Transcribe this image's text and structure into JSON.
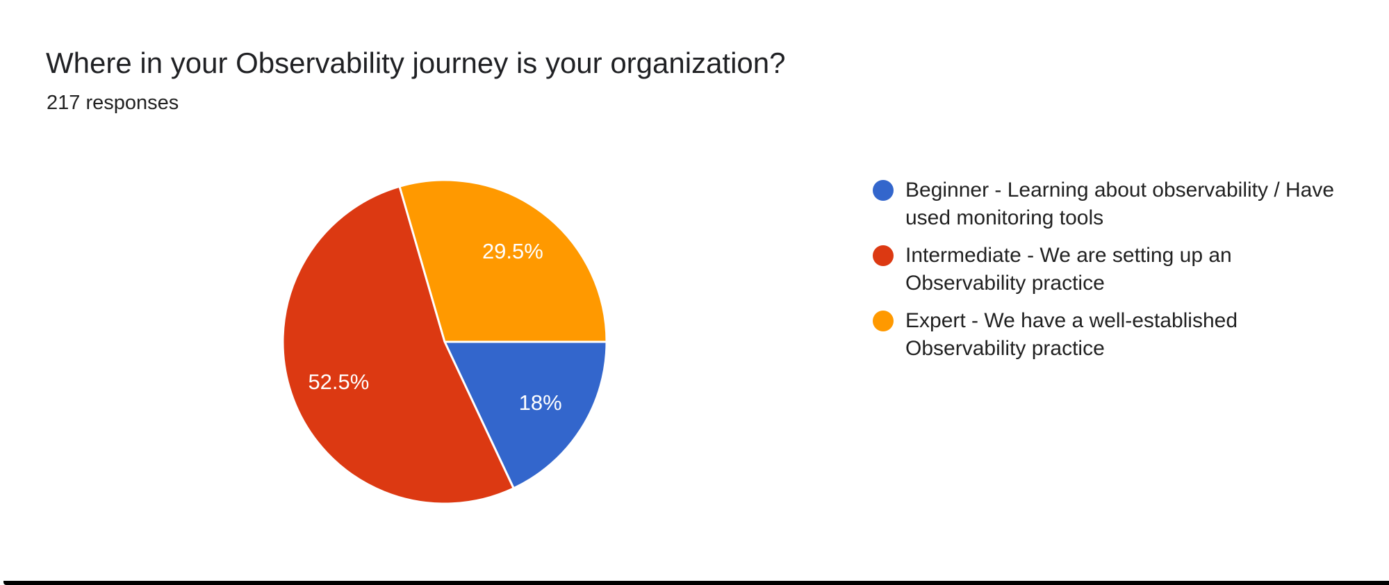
{
  "header": {
    "title": "Where in your Observability journey is your organization?",
    "responses": "217 responses"
  },
  "chart_data": {
    "type": "pie",
    "title": "Where in your Observability journey is your organization?",
    "subtitle": "217 responses",
    "total_responses": 217,
    "legend_position": "right",
    "start_angle": "3-oclock-clockwise",
    "slices": [
      {
        "id": "beginner",
        "label": "Beginner - Learning about observability / Have used monitoring tools",
        "value_pct": 18,
        "display": "18%",
        "color": "#3366CC"
      },
      {
        "id": "intermediate",
        "label": "Intermediate - We are setting up an Observability practice",
        "value_pct": 52.5,
        "display": "52.5%",
        "color": "#DC3912"
      },
      {
        "id": "expert",
        "label": "Expert - We have a well-established Observability practice",
        "value_pct": 29.5,
        "display": "29.5%",
        "color": "#FF9900"
      }
    ]
  }
}
